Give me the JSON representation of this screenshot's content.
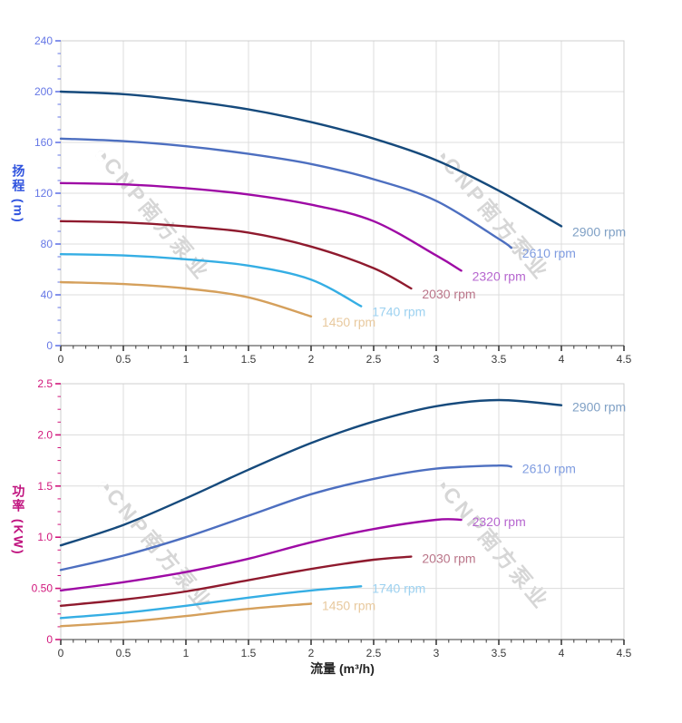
{
  "watermark": {
    "logo_glyph": "◔",
    "text": "CNP南方泵业"
  },
  "chart_data": [
    {
      "type": "line",
      "title": "",
      "xlabel": "流量 (m³/h)",
      "ylabel": "扬程 (m)",
      "xlim": [
        0,
        4.5
      ],
      "ylim": [
        0,
        240
      ],
      "grid": true,
      "legend_position": "curve-ends",
      "x_tick_labels": [
        "0",
        "0.5",
        "1",
        "1.5",
        "2",
        "2.5",
        "3",
        "3.5",
        "4",
        "4.5"
      ],
      "y_tick_labels": [
        "0",
        "40",
        "80",
        "120",
        "160",
        "200",
        "240"
      ],
      "x_minor_step": 0.1,
      "y_minor_step": 10,
      "x_tick_color": "#3a3a3a",
      "y_tick_color": "#6577e6",
      "series": [
        {
          "name": "2900 rpm",
          "color": "#164a7c",
          "label_color": "#7fa0c5",
          "x": [
            0,
            0.5,
            1,
            1.5,
            2,
            2.5,
            3,
            3.5,
            4
          ],
          "y": [
            200,
            198,
            193,
            186,
            176,
            163,
            146,
            122,
            94
          ]
        },
        {
          "name": "2610 rpm",
          "color": "#4d6fc0",
          "label_color": "#7f9ce0",
          "x": [
            0,
            0.5,
            1,
            1.5,
            2,
            2.5,
            3,
            3.5,
            3.6
          ],
          "y": [
            163,
            161,
            157,
            151,
            143,
            131,
            114,
            84,
            77
          ]
        },
        {
          "name": "2320 rpm",
          "color": "#9e0aa5",
          "label_color": "#b666cf",
          "x": [
            0,
            0.5,
            1,
            1.5,
            2,
            2.5,
            3,
            3.2
          ],
          "y": [
            128,
            127,
            124,
            119,
            111,
            98,
            71,
            59
          ]
        },
        {
          "name": "2030 rpm",
          "color": "#8f1a2e",
          "label_color": "#ba7589",
          "x": [
            0,
            0.5,
            1,
            1.5,
            2,
            2.5,
            2.8
          ],
          "y": [
            98,
            97,
            94,
            89,
            78,
            61,
            45
          ]
        },
        {
          "name": "1740 rpm",
          "color": "#35aee4",
          "label_color": "#9cd1f0",
          "x": [
            0,
            0.5,
            1,
            1.5,
            2,
            2.4
          ],
          "y": [
            72,
            71,
            68,
            63,
            52,
            31
          ]
        },
        {
          "name": "1450 rpm",
          "color": "#d5a05c",
          "label_color": "#e8c99e",
          "x": [
            0,
            0.5,
            1,
            1.5,
            2
          ],
          "y": [
            50,
            48.5,
            45,
            38,
            23
          ]
        }
      ]
    },
    {
      "type": "line",
      "title": "",
      "xlabel": "流量 (m³/h)",
      "ylabel": "功率 (KW)",
      "xlim": [
        0,
        4.5
      ],
      "ylim": [
        0,
        2.5
      ],
      "grid": true,
      "legend_position": "curve-ends",
      "x_tick_labels": [
        "0",
        "0.5",
        "1",
        "1.5",
        "2",
        "2.5",
        "3",
        "3.5",
        "4",
        "4.5"
      ],
      "y_tick_labels": [
        "0",
        "0.50",
        "1.0",
        "1.5",
        "2.0",
        "2.5"
      ],
      "x_minor_step": 0.1,
      "y_minor_step": 0.125,
      "x_tick_color": "#3a3a3a",
      "y_tick_color": "#d1177c",
      "series": [
        {
          "name": "2900 rpm",
          "color": "#164a7c",
          "label_color": "#7fa0c5",
          "x": [
            0,
            0.5,
            1,
            1.5,
            2,
            2.5,
            3,
            3.5,
            4
          ],
          "y": [
            0.92,
            1.12,
            1.38,
            1.66,
            1.92,
            2.13,
            2.28,
            2.34,
            2.29
          ]
        },
        {
          "name": "2610 rpm",
          "color": "#4d6fc0",
          "label_color": "#7f9ce0",
          "x": [
            0,
            0.5,
            1,
            1.5,
            2,
            2.5,
            3,
            3.5,
            3.6
          ],
          "y": [
            0.68,
            0.82,
            1.0,
            1.21,
            1.42,
            1.57,
            1.67,
            1.7,
            1.69
          ]
        },
        {
          "name": "2320 rpm",
          "color": "#9e0aa5",
          "label_color": "#b666cf",
          "x": [
            0,
            0.5,
            1,
            1.5,
            2,
            2.5,
            3,
            3.2
          ],
          "y": [
            0.48,
            0.56,
            0.66,
            0.79,
            0.95,
            1.08,
            1.17,
            1.17
          ]
        },
        {
          "name": "2030 rpm",
          "color": "#8f1a2e",
          "label_color": "#ba7589",
          "x": [
            0,
            0.5,
            1,
            1.5,
            2,
            2.5,
            2.8
          ],
          "y": [
            0.33,
            0.39,
            0.47,
            0.58,
            0.69,
            0.78,
            0.81
          ]
        },
        {
          "name": "1740 rpm",
          "color": "#35aee4",
          "label_color": "#9cd1f0",
          "x": [
            0,
            0.5,
            1,
            1.5,
            2,
            2.4
          ],
          "y": [
            0.21,
            0.26,
            0.33,
            0.41,
            0.48,
            0.52
          ]
        },
        {
          "name": "1450 rpm",
          "color": "#d5a05c",
          "label_color": "#e8c99e",
          "x": [
            0,
            0.5,
            1,
            1.5,
            2
          ],
          "y": [
            0.13,
            0.17,
            0.23,
            0.3,
            0.35
          ]
        }
      ]
    }
  ]
}
